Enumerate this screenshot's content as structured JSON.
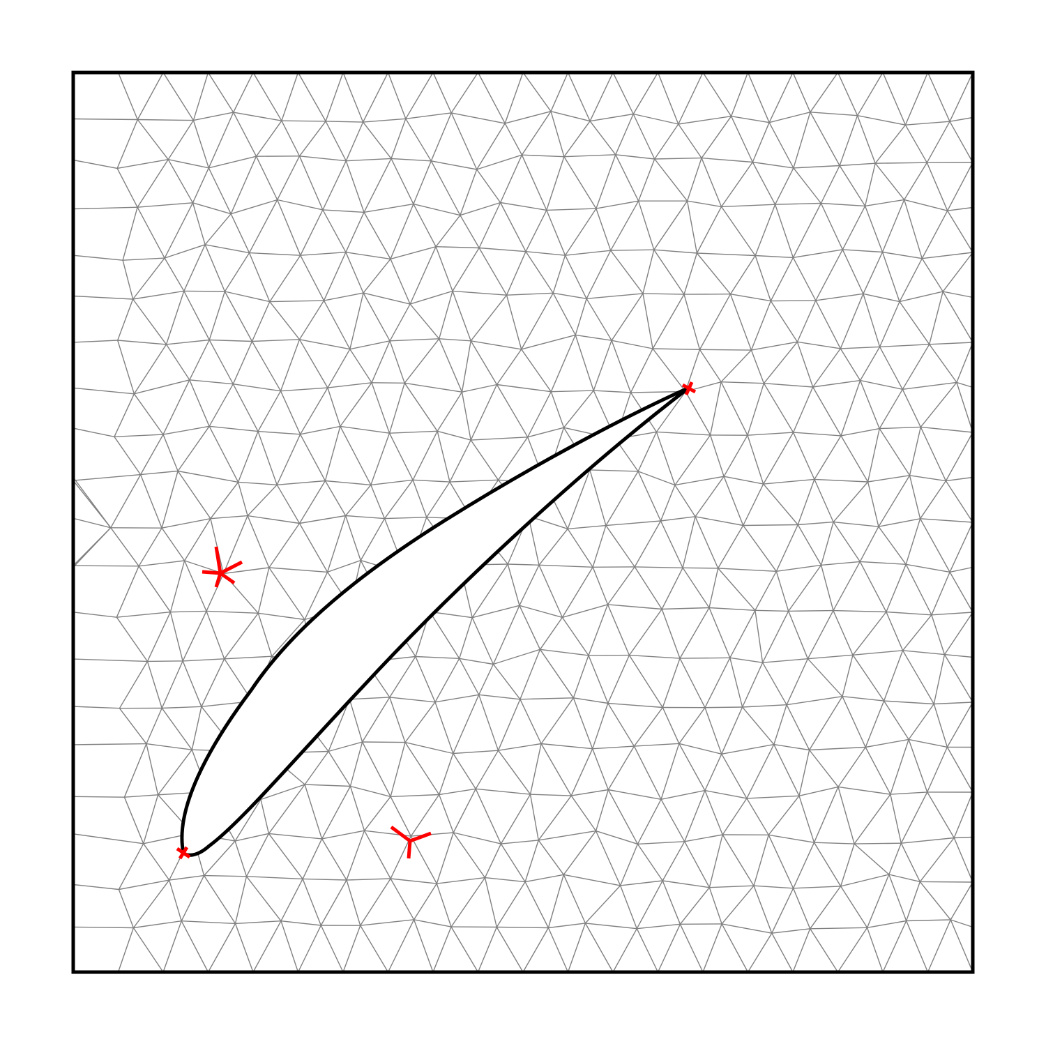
{
  "diagram": {
    "kind": "unstructured-triangular-mesh",
    "domain": "square",
    "body": "airfoil",
    "colors": {
      "mesh": "#808080",
      "boundary": "#000000",
      "markers": "#ff0000",
      "background": "#ffffff"
    },
    "markers": [
      {
        "name": "leading-edge-marker",
        "kind": "small-cross"
      },
      {
        "name": "trailing-edge-marker",
        "kind": "small-cross"
      },
      {
        "name": "singular-node-5-marker",
        "kind": "five-spoke-star"
      },
      {
        "name": "singular-node-3-marker",
        "kind": "three-spoke-star"
      }
    ]
  }
}
